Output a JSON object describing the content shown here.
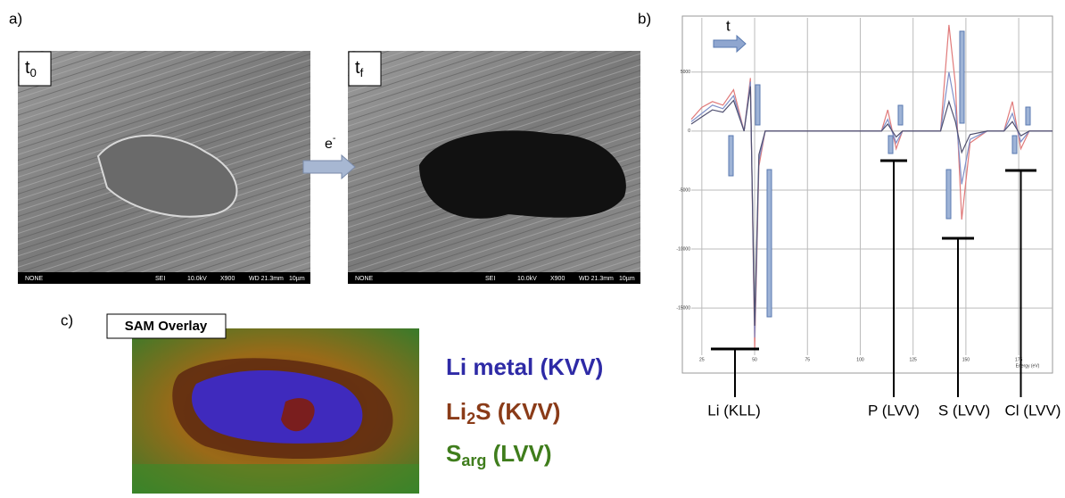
{
  "panel_a": {
    "label": "a)",
    "image_start": {
      "main": "t",
      "sub": "0"
    },
    "image_end": {
      "main": "t",
      "sub": "f"
    },
    "beam": {
      "main": "e",
      "sup": "-"
    },
    "info_bar": [
      "NONE",
      "SEI",
      "10.0kV",
      "X900",
      "WD 21.3mm",
      "10µm"
    ]
  },
  "panel_b": {
    "label": "b)",
    "time_label": "t",
    "peak_labels": [
      "Li (KLL)",
      "P (LVV)",
      "S (LVV)",
      "Cl (LVV)"
    ]
  },
  "chart_data": {
    "type": "line",
    "x_label": "Energy (eV)",
    "xlim": [
      20,
      191
    ],
    "ylim": [
      -19000,
      9600
    ],
    "xticks": [
      25,
      50,
      75,
      100,
      125,
      150,
      175
    ],
    "yticks": [
      5000,
      0,
      -5000,
      -10000,
      -15000
    ],
    "grid": true,
    "x": [
      20,
      25,
      30,
      35,
      40,
      45,
      48,
      50,
      52,
      55,
      60,
      80,
      100,
      110,
      113,
      117,
      120,
      125,
      130,
      138,
      142,
      145,
      148,
      152,
      160,
      168,
      172,
      176,
      180,
      191
    ],
    "series": [
      {
        "color": "#e07a7a",
        "values": [
          1000,
          2000,
          2500,
          2200,
          3500,
          0,
          4500,
          -18500,
          -3000,
          0,
          0,
          0,
          0,
          0,
          1800,
          -1500,
          0,
          0,
          0,
          0,
          9000,
          4000,
          -7500,
          -1000,
          0,
          0,
          2500,
          -1500,
          0,
          0
        ]
      },
      {
        "color": "#7f8fc8",
        "values": [
          800,
          1500,
          2200,
          1900,
          3000,
          0,
          4200,
          -17500,
          -2500,
          0,
          0,
          0,
          0,
          0,
          1000,
          -1000,
          0,
          0,
          0,
          0,
          5000,
          2000,
          -4500,
          -700,
          0,
          0,
          1500,
          -900,
          0,
          0
        ]
      },
      {
        "color": "#505070",
        "values": [
          600,
          1200,
          1800,
          1600,
          2600,
          0,
          3800,
          -16500,
          -2000,
          0,
          0,
          0,
          0,
          0,
          600,
          -500,
          0,
          0,
          0,
          0,
          2500,
          800,
          -1800,
          -300,
          0,
          0,
          800,
          -400,
          0,
          0
        ]
      }
    ]
  },
  "panel_c": {
    "label": "c)",
    "title": "SAM Overlay",
    "legend": [
      {
        "main": "Li metal (KVV)"
      },
      {
        "main": "Li",
        "sub": "2",
        "rest": "S (KVV)"
      },
      {
        "main": "S",
        "sub": "arg",
        "rest": " (LVV)"
      }
    ]
  }
}
